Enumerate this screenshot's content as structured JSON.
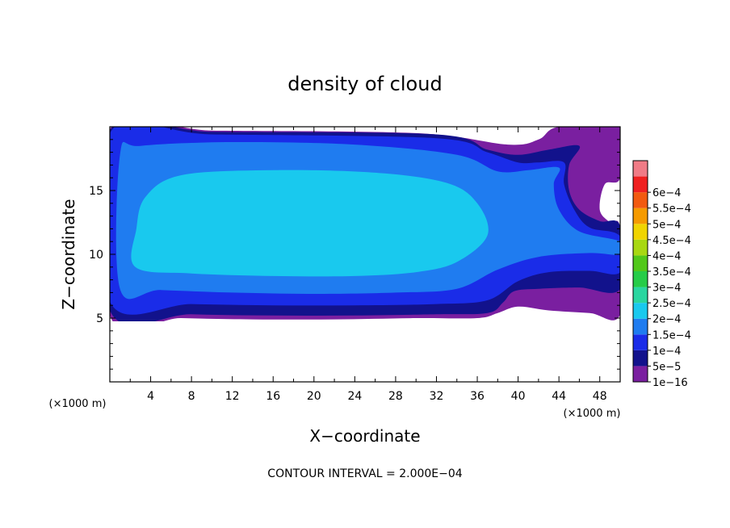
{
  "chart_data": {
    "type": "heatmap",
    "title": "density of cloud",
    "xlabel": "X−coordinate",
    "ylabel": "Z−coordinate",
    "x_unit": "(×1000 m)",
    "y_unit": "(×1000 m)",
    "xlim": [
      0,
      50
    ],
    "ylim": [
      0,
      20
    ],
    "x_ticks": [
      4,
      8,
      12,
      16,
      20,
      24,
      28,
      32,
      36,
      40,
      44,
      48
    ],
    "y_ticks": [
      5,
      10,
      15
    ],
    "footnote": "CONTOUR INTERVAL = 2.000E−04",
    "colorbar": {
      "labels": [
        "1e−16",
        "5e−5",
        "1e−4",
        "1.5e−4",
        "2e−4",
        "2.5e−4",
        "3e−4",
        "3.5e−4",
        "4e−4",
        "4.5e−4",
        "5e−4",
        "5.5e−4",
        "6e−4"
      ],
      "values": [
        1e-16,
        5e-05,
        0.0001,
        0.00015,
        0.0002,
        0.00025,
        0.0003,
        0.00035,
        0.0004,
        0.00045,
        0.0005,
        0.00055,
        0.0006
      ],
      "colors": [
        "#7a1fa0",
        "#12128c",
        "#1a2ce8",
        "#1f7cf0",
        "#19c9ee",
        "#2ad6a0",
        "#26cc48",
        "#52c81a",
        "#a8d812",
        "#f0d400",
        "#f59a00",
        "#f25a10",
        "#ef2020",
        "#f07b86"
      ]
    },
    "field_layers": [
      {
        "level": "1e−16",
        "color": "#7a1fa0",
        "region": [
          [
            0,
            5.2
          ],
          [
            7,
            5.0
          ],
          [
            14,
            4.9
          ],
          [
            22,
            4.9
          ],
          [
            30,
            5.0
          ],
          [
            36,
            5.0
          ],
          [
            38,
            5.4
          ],
          [
            40,
            5.9
          ],
          [
            43,
            5.6
          ],
          [
            47,
            5.4
          ],
          [
            50,
            5.3
          ],
          [
            50,
            12
          ],
          [
            49,
            12.5
          ],
          [
            48,
            13.5
          ],
          [
            48.5,
            15.5
          ],
          [
            50,
            16
          ],
          [
            50,
            20
          ],
          [
            44,
            20
          ],
          [
            42,
            19
          ],
          [
            39,
            18.6
          ],
          [
            30,
            19.5
          ],
          [
            10,
            19.7
          ],
          [
            0,
            19.8
          ]
        ]
      },
      {
        "level": "5e−5",
        "color": "#12128c",
        "region": [
          [
            0,
            5.6
          ],
          [
            8,
            5.3
          ],
          [
            16,
            5.2
          ],
          [
            24,
            5.2
          ],
          [
            32,
            5.3
          ],
          [
            37,
            5.4
          ],
          [
            38.5,
            6.2
          ],
          [
            39.6,
            7.1
          ],
          [
            42,
            7.3
          ],
          [
            46,
            7.4
          ],
          [
            50,
            7.3
          ],
          [
            50,
            12.2
          ],
          [
            48,
            12.6
          ],
          [
            46,
            13.5
          ],
          [
            45,
            15
          ],
          [
            45,
            17
          ],
          [
            46,
            18.5
          ],
          [
            43,
            18.2
          ],
          [
            40,
            17.8
          ],
          [
            37,
            18.2
          ],
          [
            32,
            19.4
          ],
          [
            10,
            19.6
          ],
          [
            0,
            19.7
          ]
        ]
      },
      {
        "level": "1e−4",
        "color": "#1a2ce8",
        "region": [
          [
            0,
            6.3
          ],
          [
            8,
            6.1
          ],
          [
            16,
            6.0
          ],
          [
            24,
            6.0
          ],
          [
            32,
            6.1
          ],
          [
            37,
            6.4
          ],
          [
            40,
            7.9
          ],
          [
            43,
            8.6
          ],
          [
            47,
            8.7
          ],
          [
            50,
            8.6
          ],
          [
            50,
            11.4
          ],
          [
            47,
            12.1
          ],
          [
            45.5,
            13.5
          ],
          [
            44.5,
            15.5
          ],
          [
            44.5,
            17.2
          ],
          [
            42,
            17.2
          ],
          [
            40,
            17.2
          ],
          [
            37,
            18.0
          ],
          [
            32,
            19.1
          ],
          [
            10,
            19.4
          ],
          [
            0,
            19.5
          ]
        ]
      },
      {
        "level": "1.5e−4",
        "color": "#1f7cf0",
        "region": [
          [
            1,
            7.3
          ],
          [
            5,
            7.2
          ],
          [
            12,
            7.0
          ],
          [
            20,
            6.9
          ],
          [
            28,
            7.0
          ],
          [
            34,
            7.3
          ],
          [
            38,
            8.8
          ],
          [
            42,
            9.8
          ],
          [
            47,
            10.1
          ],
          [
            50,
            10.0
          ],
          [
            50,
            11.0
          ],
          [
            46,
            11.8
          ],
          [
            44,
            13.5
          ],
          [
            43.5,
            15.5
          ],
          [
            44,
            16.8
          ],
          [
            41,
            16.6
          ],
          [
            38,
            16.5
          ],
          [
            34,
            17.8
          ],
          [
            24,
            18.6
          ],
          [
            12,
            18.8
          ],
          [
            3,
            18.5
          ],
          [
            1,
            17.8
          ]
        ]
      },
      {
        "level": "2e−4",
        "color": "#19c9ee",
        "region": [
          [
            2.5,
            9.0
          ],
          [
            8,
            8.5
          ],
          [
            16,
            8.3
          ],
          [
            24,
            8.3
          ],
          [
            30,
            8.6
          ],
          [
            34,
            9.4
          ],
          [
            37,
            11.5
          ],
          [
            36,
            14.0
          ],
          [
            33,
            15.6
          ],
          [
            26,
            16.4
          ],
          [
            16,
            16.6
          ],
          [
            7,
            16.2
          ],
          [
            3.5,
            14.5
          ],
          [
            2.6,
            12.0
          ]
        ]
      }
    ],
    "blank_region_below": 5.0
  }
}
